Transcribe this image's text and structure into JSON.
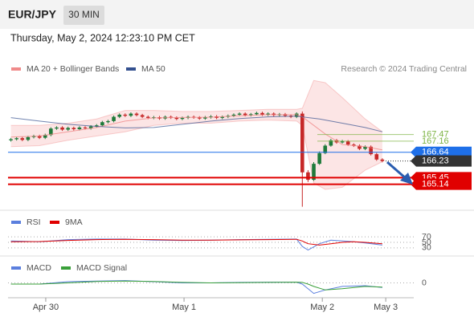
{
  "header": {
    "symbol": "EUR/JPY",
    "interval": "30 MIN",
    "timestamp": "Thursday, May 2, 2024 12:23:10 PM CET",
    "credit": "Research © 2024 Trading Central"
  },
  "chart_data": [
    {
      "type": "candlestick",
      "xlim": [
        -0.5,
        70.5
      ],
      "ylim": [
        164,
        170.2
      ],
      "up_color": "#1f7a3a",
      "down_color": "#c62828",
      "open": [
        167.2,
        167.25,
        167.3,
        167.22,
        167.35,
        167.4,
        167.32,
        167.45,
        167.75,
        167.8,
        167.7,
        167.78,
        167.72,
        167.8,
        167.76,
        167.85,
        167.9,
        168.05,
        168.1,
        168.3,
        168.4,
        168.35,
        168.45,
        168.38,
        168.3,
        168.25,
        168.28,
        168.22,
        168.3,
        168.26,
        168.2,
        168.25,
        168.3,
        168.27,
        168.22,
        168.28,
        168.32,
        168.25,
        168.3,
        168.35,
        168.4,
        168.45,
        168.38,
        168.42,
        168.48,
        168.4,
        168.45,
        168.38,
        168.42,
        168.35,
        168.3,
        168.45,
        165.7,
        165.35,
        166.1,
        166.6,
        166.95,
        167.2,
        167.1,
        167.15,
        167.0,
        166.95,
        166.8,
        166.9,
        166.55,
        166.3
      ],
      "high": [
        167.31,
        167.36,
        167.36,
        167.41,
        167.46,
        167.46,
        167.51,
        167.81,
        167.86,
        167.86,
        167.84,
        167.84,
        167.86,
        167.86,
        167.91,
        167.96,
        168.11,
        168.16,
        168.36,
        168.46,
        168.46,
        168.51,
        168.51,
        168.44,
        168.36,
        168.34,
        168.34,
        168.36,
        168.36,
        168.32,
        168.31,
        168.36,
        168.36,
        168.33,
        168.34,
        168.38,
        168.38,
        168.36,
        168.41,
        168.46,
        168.51,
        168.51,
        168.48,
        168.54,
        168.54,
        168.51,
        168.51,
        168.48,
        168.48,
        168.41,
        168.51,
        168.55,
        165.8,
        166.18,
        166.68,
        167.02,
        167.27,
        167.26,
        167.22,
        167.21,
        167.06,
        167.01,
        166.96,
        166.96,
        166.61,
        166.36
      ],
      "low": [
        167.14,
        167.19,
        167.16,
        167.16,
        167.29,
        167.26,
        167.26,
        167.39,
        167.69,
        167.64,
        167.64,
        167.66,
        167.66,
        167.7,
        167.7,
        167.79,
        167.84,
        167.99,
        168.04,
        168.24,
        168.29,
        168.29,
        168.32,
        168.24,
        168.19,
        168.19,
        168.16,
        168.16,
        168.2,
        168.14,
        168.14,
        168.19,
        168.21,
        168.16,
        168.16,
        168.22,
        168.19,
        168.19,
        168.24,
        168.29,
        168.34,
        168.32,
        168.32,
        168.36,
        168.34,
        168.34,
        168.32,
        168.32,
        168.29,
        168.24,
        168.24,
        164.09,
        165.25,
        165.3,
        166.05,
        166.55,
        166.9,
        167.04,
        167.05,
        166.94,
        166.89,
        166.74,
        166.74,
        166.49,
        166.24,
        166.17
      ],
      "close": [
        167.25,
        167.3,
        167.22,
        167.35,
        167.4,
        167.32,
        167.45,
        167.75,
        167.8,
        167.7,
        167.78,
        167.72,
        167.8,
        167.76,
        167.85,
        167.9,
        168.05,
        168.1,
        168.3,
        168.4,
        168.35,
        168.45,
        168.38,
        168.3,
        168.25,
        168.28,
        168.22,
        168.3,
        168.26,
        168.2,
        168.25,
        168.3,
        168.27,
        168.22,
        168.28,
        168.32,
        168.25,
        168.3,
        168.35,
        168.4,
        168.45,
        168.38,
        168.42,
        168.48,
        168.4,
        168.45,
        168.38,
        168.42,
        168.35,
        168.3,
        168.45,
        165.7,
        165.35,
        166.1,
        166.6,
        166.95,
        167.2,
        167.1,
        167.15,
        167.0,
        166.95,
        166.8,
        166.9,
        166.55,
        166.3,
        166.23
      ],
      "series": [
        {
          "name": "MA 20 + Bollinger Bands",
          "color": "#f08a8a",
          "x": [
            0,
            5,
            10,
            15,
            20,
            25,
            30,
            35,
            40,
            45,
            50,
            51,
            53,
            55,
            58,
            62,
            65
          ],
          "values": [
            167.35,
            167.4,
            167.6,
            167.8,
            168.1,
            168.25,
            168.27,
            168.28,
            168.35,
            168.4,
            168.4,
            168.3,
            167.9,
            167.5,
            167.0,
            166.9,
            166.75
          ],
          "upper": [
            167.9,
            167.9,
            168.0,
            168.2,
            168.6,
            168.6,
            168.55,
            168.55,
            168.6,
            168.65,
            168.65,
            168.7,
            170.0,
            169.9,
            169.2,
            168.2,
            167.6
          ],
          "lower": [
            166.9,
            166.95,
            167.2,
            167.4,
            167.6,
            167.9,
            168.0,
            168.0,
            168.1,
            168.15,
            168.1,
            167.9,
            165.2,
            164.9,
            165.0,
            165.8,
            166.2
          ]
        },
        {
          "name": "MA 50",
          "color": "#34508f",
          "x": [
            0,
            5,
            10,
            15,
            20,
            25,
            30,
            35,
            40,
            45,
            50,
            54,
            58,
            62,
            65
          ],
          "values": [
            168.26,
            168.1,
            167.95,
            167.85,
            167.78,
            167.8,
            167.95,
            168.1,
            168.22,
            168.3,
            168.33,
            168.2,
            168.0,
            167.8,
            167.6
          ]
        }
      ],
      "levels": [
        {
          "value": 167.47,
          "color": "#7cb342",
          "label_style": "plain",
          "line_style": "solid",
          "line_width": 1
        },
        {
          "value": 167.16,
          "color": "#7cb342",
          "label_style": "plain",
          "line_style": "solid",
          "line_width": 1
        },
        {
          "value": 166.64,
          "color": "#1e6fe8",
          "label_style": "box",
          "line_style": "solid",
          "line_width": 1
        },
        {
          "value": 166.23,
          "color": "#333333",
          "label_style": "box",
          "line_style": "dotted",
          "line_width": 1
        },
        {
          "value": 165.45,
          "color": "#e00000",
          "label_style": "box",
          "line_style": "solid",
          "line_width": 2
        },
        {
          "value": 165.14,
          "color": "#e00000",
          "label_style": "box",
          "line_style": "solid",
          "line_width": 2
        }
      ]
    },
    {
      "type": "line",
      "xlim": [
        -0.5,
        70.5
      ],
      "ylim": [
        15,
        85
      ],
      "yticks": [
        30,
        50,
        70
      ],
      "series": [
        {
          "name": "RSI",
          "color": "#5b7fde",
          "x": [
            0,
            5,
            10,
            15,
            20,
            25,
            30,
            35,
            40,
            45,
            50,
            51,
            52,
            54,
            56,
            58,
            60,
            62,
            65
          ],
          "values": [
            55,
            52,
            60,
            62,
            62,
            58,
            57,
            58,
            60,
            61,
            62,
            35,
            22,
            45,
            58,
            55,
            52,
            48,
            40
          ]
        },
        {
          "name": "9MA",
          "color": "#e00000",
          "x": [
            0,
            5,
            10,
            15,
            20,
            25,
            30,
            35,
            40,
            45,
            50,
            51,
            52,
            54,
            56,
            58,
            60,
            62,
            65
          ],
          "values": [
            52,
            53,
            57,
            60,
            61,
            60,
            58,
            58,
            59,
            60,
            61,
            55,
            45,
            40,
            45,
            50,
            52,
            50,
            45
          ]
        }
      ]
    },
    {
      "type": "line",
      "xlim": [
        -0.5,
        70.5
      ],
      "ylim": [
        -0.6,
        0.6
      ],
      "yticks": [
        0
      ],
      "xticks": [
        {
          "value": 6.1,
          "label": "Apr 30"
        },
        {
          "value": 30.3,
          "label": "May 1"
        },
        {
          "value": 54.5,
          "label": "May 2"
        },
        {
          "value": 65.6,
          "label": "May 3"
        }
      ],
      "series": [
        {
          "name": "MACD",
          "color": "#5b7fde",
          "x": [
            0,
            5,
            10,
            15,
            20,
            25,
            30,
            35,
            40,
            45,
            50,
            51,
            52,
            53,
            55,
            58,
            62,
            65
          ],
          "values": [
            -0.05,
            -0.05,
            0.05,
            0.08,
            0.1,
            0.05,
            0.0,
            0.0,
            0.02,
            0.03,
            0.03,
            -0.05,
            -0.25,
            -0.45,
            -0.3,
            -0.15,
            -0.12,
            -0.2
          ]
        },
        {
          "name": "MACD Signal",
          "color": "#3aa03a",
          "x": [
            0,
            5,
            10,
            15,
            20,
            25,
            30,
            35,
            40,
            45,
            50,
            51,
            52,
            53,
            55,
            58,
            62,
            65
          ],
          "values": [
            -0.05,
            -0.05,
            0.0,
            0.06,
            0.08,
            0.06,
            0.02,
            0.0,
            0.01,
            0.02,
            0.03,
            0.02,
            -0.05,
            -0.15,
            -0.3,
            -0.25,
            -0.15,
            -0.18
          ]
        }
      ]
    }
  ]
}
